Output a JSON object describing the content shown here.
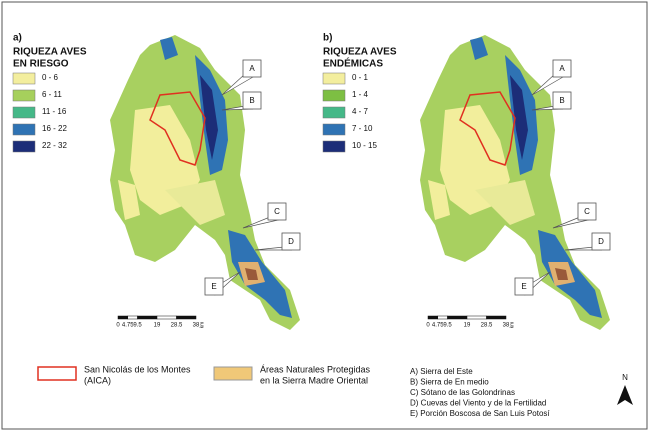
{
  "panels": [
    {
      "label": "a)",
      "title": [
        "RIQUEZA AVES",
        "EN RIESGO"
      ],
      "legend": [
        {
          "label": "0 - 6",
          "color": "#f3ee9e"
        },
        {
          "label": "6 - 11",
          "color": "#a6d05c"
        },
        {
          "label": "11 - 16",
          "color": "#45b888"
        },
        {
          "label": "16 - 22",
          "color": "#2f73b4"
        },
        {
          "label": "22 - 32",
          "color": "#1c2d78"
        }
      ],
      "callouts": [
        "A",
        "B",
        "C",
        "D",
        "E"
      ],
      "scale": {
        "ticks": [
          0,
          4.75,
          9.5,
          19,
          28.5,
          38
        ],
        "unit": "km"
      }
    },
    {
      "label": "b)",
      "title": [
        "RIQUEZA AVES",
        "ENDÉMICAS"
      ],
      "legend": [
        {
          "label": "0 - 1",
          "color": "#f3ee9e"
        },
        {
          "label": "1 - 4",
          "color": "#7dbf43"
        },
        {
          "label": "4 - 7",
          "color": "#45b888"
        },
        {
          "label": "7 - 10",
          "color": "#2f73b4"
        },
        {
          "label": "10 - 15",
          "color": "#1c2d78"
        }
      ],
      "callouts": [
        "A",
        "B",
        "C",
        "D",
        "E"
      ],
      "scale": {
        "ticks": [
          0,
          4.75,
          9.5,
          19,
          28.5,
          38
        ],
        "unit": "km"
      }
    }
  ],
  "footer": {
    "aica": [
      "San Nicolás de los Montes",
      "(AICA)"
    ],
    "anp": [
      "Áreas Naturales Protegidas",
      "en la Sierra Madre Oriental"
    ],
    "sites": [
      "A) Sierra del Este",
      "B) Sierra de En medio",
      "C) Sótano de las Golondrinas",
      "D) Cuevas del Viento y de la Fertilidad",
      "E) Porción Boscosa de San Luis Potosí"
    ],
    "north": "N"
  }
}
